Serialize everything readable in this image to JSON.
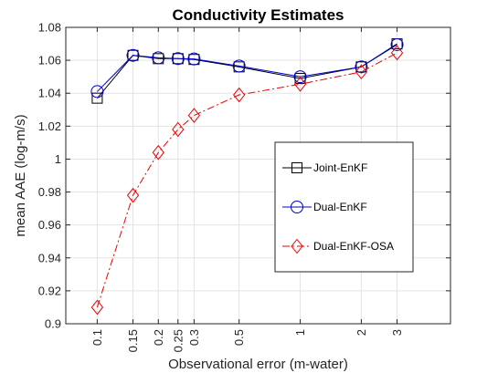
{
  "chart_data": {
    "type": "line",
    "title": "Conductivity Estimates",
    "xlabel": "Observational error (m-water)",
    "ylabel": "mean AAE (log-m/s)",
    "x": [
      0.1,
      0.15,
      0.2,
      0.25,
      0.3,
      0.5,
      1,
      2,
      3
    ],
    "x_tick_labels": [
      "0.1",
      "0.15",
      "0.2",
      "0.25",
      "0.3",
      "0.5",
      "1",
      "2",
      "3"
    ],
    "x_scale": "log",
    "xlim": [
      0.07,
      5.5
    ],
    "ylim": [
      0.9,
      1.08
    ],
    "y_ticks": [
      0.9,
      0.92,
      0.94,
      0.96,
      0.98,
      1,
      1.02,
      1.04,
      1.06,
      1.08
    ],
    "y_tick_labels": [
      "0.9",
      "0.92",
      "0.94",
      "0.96",
      "0.98",
      "1",
      "1.02",
      "1.04",
      "1.06",
      "1.08"
    ],
    "grid": true,
    "legend_position": "right-center",
    "series": [
      {
        "name": "Joint-EnKF",
        "color": "#000000",
        "marker": "square",
        "line_style": "solid",
        "values": [
          1.037,
          1.063,
          1.061,
          1.061,
          1.0605,
          1.056,
          1.049,
          1.056,
          1.07
        ]
      },
      {
        "name": "Dual-EnKF",
        "color": "#0000cc",
        "marker": "circle",
        "line_style": "solid",
        "values": [
          1.041,
          1.063,
          1.0615,
          1.061,
          1.0608,
          1.0565,
          1.05,
          1.056,
          1.0695
        ]
      },
      {
        "name": "Dual-EnKF-OSA",
        "color": "#ee0000",
        "marker": "diamond",
        "line_style": "dash-dot",
        "values": [
          0.91,
          0.978,
          1.004,
          1.018,
          1.0265,
          1.039,
          1.0455,
          1.053,
          1.0645
        ]
      }
    ]
  }
}
